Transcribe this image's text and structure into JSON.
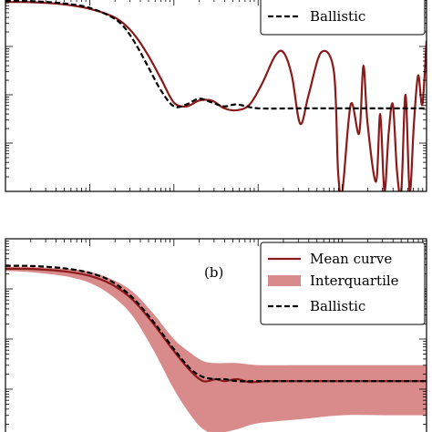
{
  "colors": {
    "mean": "#8b1a1a",
    "band": "#d98b8b",
    "ballistic": "#000000",
    "frame": "#000000"
  },
  "chart_data": [
    {
      "id": "a",
      "type": "line",
      "panel_label": "",
      "xscale": "log",
      "xlim": [
        0,
        1
      ],
      "ylim": [
        0,
        1
      ],
      "legend": {
        "placement": "top-right",
        "entries": [
          {
            "key": "ballistic",
            "label": "Ballistic",
            "style": "dashed"
          }
        ]
      },
      "series": [
        {
          "key": "mean",
          "x": [
            0,
            0.05,
            0.1,
            0.15,
            0.2,
            0.25,
            0.28,
            0.31,
            0.34,
            0.37,
            0.4,
            0.43,
            0.46,
            0.49,
            0.52,
            0.55,
            0.58,
            0.61,
            0.64,
            0.66,
            0.68,
            0.7,
            0.72,
            0.75,
            0.78,
            0.79,
            0.8,
            0.82,
            0.84,
            0.85,
            0.86,
            0.88,
            0.89,
            0.9,
            0.91,
            0.92,
            0.93,
            0.94,
            0.95,
            0.96,
            0.97,
            0.98,
            0.99,
            1.0
          ],
          "y": [
            0.98,
            0.98,
            0.975,
            0.965,
            0.945,
            0.91,
            0.87,
            0.8,
            0.7,
            0.58,
            0.46,
            0.44,
            0.47,
            0.47,
            0.43,
            0.42,
            0.45,
            0.56,
            0.7,
            0.72,
            0.6,
            0.35,
            0.5,
            0.72,
            0.62,
            0.1,
            0.0,
            0.45,
            0.3,
            0.65,
            0.35,
            0.05,
            0.4,
            0.0,
            0.3,
            0.45,
            0.1,
            0.0,
            0.5,
            0.0,
            0.35,
            0.6,
            0.45,
            0.78
          ]
        },
        {
          "key": "ballistic",
          "x": [
            0,
            0.05,
            0.1,
            0.15,
            0.2,
            0.25,
            0.28,
            0.31,
            0.34,
            0.37,
            0.4,
            0.43,
            0.46,
            0.49,
            0.52,
            0.55,
            0.6,
            0.7,
            0.8,
            0.9,
            1.0
          ],
          "y": [
            0.985,
            0.985,
            0.98,
            0.97,
            0.95,
            0.905,
            0.855,
            0.76,
            0.64,
            0.52,
            0.44,
            0.45,
            0.48,
            0.46,
            0.44,
            0.45,
            0.43,
            0.43,
            0.43,
            0.43,
            0.43
          ]
        }
      ]
    },
    {
      "id": "b",
      "type": "line",
      "panel_label": "(b)",
      "xscale": "log",
      "xlim": [
        0,
        1
      ],
      "ylim": [
        0,
        1
      ],
      "legend": {
        "placement": "top-right",
        "entries": [
          {
            "key": "mean",
            "label": "Mean curve",
            "style": "solid"
          },
          {
            "key": "band",
            "label": "Interquartile",
            "style": "fill"
          },
          {
            "key": "ballistic",
            "label": "Ballistic",
            "style": "dashed"
          }
        ]
      },
      "series": [
        {
          "key": "mean",
          "x": [
            0,
            0.05,
            0.1,
            0.15,
            0.2,
            0.25,
            0.3,
            0.35,
            0.4,
            0.44,
            0.47,
            0.5,
            0.52,
            0.55,
            0.58,
            0.62,
            0.66,
            0.7,
            0.8,
            0.9,
            1.0
          ],
          "y": [
            0.85,
            0.85,
            0.845,
            0.835,
            0.815,
            0.775,
            0.7,
            0.58,
            0.44,
            0.34,
            0.29,
            0.3,
            0.29,
            0.3,
            0.285,
            0.29,
            0.29,
            0.29,
            0.29,
            0.29,
            0.29
          ]
        },
        {
          "key": "band_upper",
          "x": [
            0,
            0.05,
            0.1,
            0.15,
            0.2,
            0.25,
            0.3,
            0.35,
            0.4,
            0.44,
            0.47,
            0.5,
            0.55,
            0.6,
            0.7,
            0.8,
            0.9,
            1.0
          ],
          "y": [
            0.86,
            0.86,
            0.855,
            0.85,
            0.835,
            0.8,
            0.74,
            0.63,
            0.5,
            0.43,
            0.39,
            0.38,
            0.38,
            0.37,
            0.37,
            0.37,
            0.37,
            0.37
          ]
        },
        {
          "key": "band_lower",
          "x": [
            0,
            0.05,
            0.1,
            0.15,
            0.2,
            0.25,
            0.3,
            0.35,
            0.4,
            0.44,
            0.47,
            0.5,
            0.55,
            0.6,
            0.7,
            0.8,
            0.9,
            1.0
          ],
          "y": [
            0.84,
            0.835,
            0.825,
            0.81,
            0.78,
            0.72,
            0.62,
            0.45,
            0.25,
            0.12,
            0.05,
            0.03,
            0.05,
            0.08,
            0.1,
            0.12,
            0.12,
            0.12
          ]
        },
        {
          "key": "ballistic",
          "x": [
            0,
            0.05,
            0.1,
            0.15,
            0.2,
            0.25,
            0.3,
            0.35,
            0.4,
            0.44,
            0.47,
            0.5,
            0.52,
            0.55,
            0.6,
            0.7,
            0.8,
            0.9,
            1.0
          ],
          "y": [
            0.865,
            0.865,
            0.86,
            0.85,
            0.83,
            0.79,
            0.71,
            0.59,
            0.45,
            0.35,
            0.31,
            0.3,
            0.3,
            0.29,
            0.29,
            0.29,
            0.29,
            0.29,
            0.29
          ]
        }
      ]
    }
  ]
}
